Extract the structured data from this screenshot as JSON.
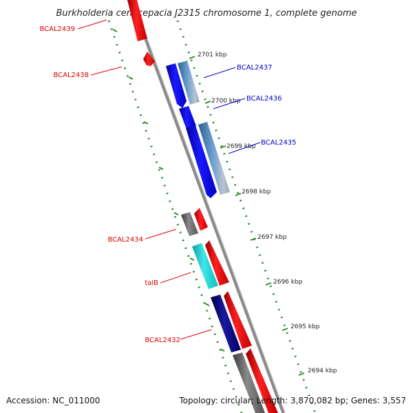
{
  "title": "Burkholderia cenocepacia J2315 chromosome 1, complete genome",
  "footer": {
    "accession": "Accession: NC_011000",
    "summary": "Topology: circular; Length: 3,870,082 bp; Genes: 3,557"
  },
  "colors": {
    "backbone": "#8a8a8a",
    "ticks": "#2e8b2e",
    "forward_gene": "#ff0000",
    "reverse_gene": "#0000ee",
    "steelblue_gene": "#4f81bd",
    "gray_gene": "#707070",
    "cyan_gene": "#1ccfd0",
    "navy_gene": "#000080",
    "label_red": "#dd0000",
    "label_blue": "#0000cc"
  },
  "scale_labels": [
    "2701 kbp",
    "2700 kbp",
    "2699 kbp",
    "2698 kbp",
    "2697 kbp",
    "2696 kbp",
    "2695 kbp",
    "2694 kbp"
  ],
  "gene_labels": [
    {
      "text": "BCAL2439",
      "color": "red"
    },
    {
      "text": "BCAL2438",
      "color": "red"
    },
    {
      "text": "BCAL2437",
      "color": "blue"
    },
    {
      "text": "BCAL2436",
      "color": "blue"
    },
    {
      "text": "BCAL2435",
      "color": "blue"
    },
    {
      "text": "BCAL2434",
      "color": "red"
    },
    {
      "text": "talB",
      "color": "red"
    },
    {
      "text": "BCAL2432",
      "color": "red"
    }
  ]
}
